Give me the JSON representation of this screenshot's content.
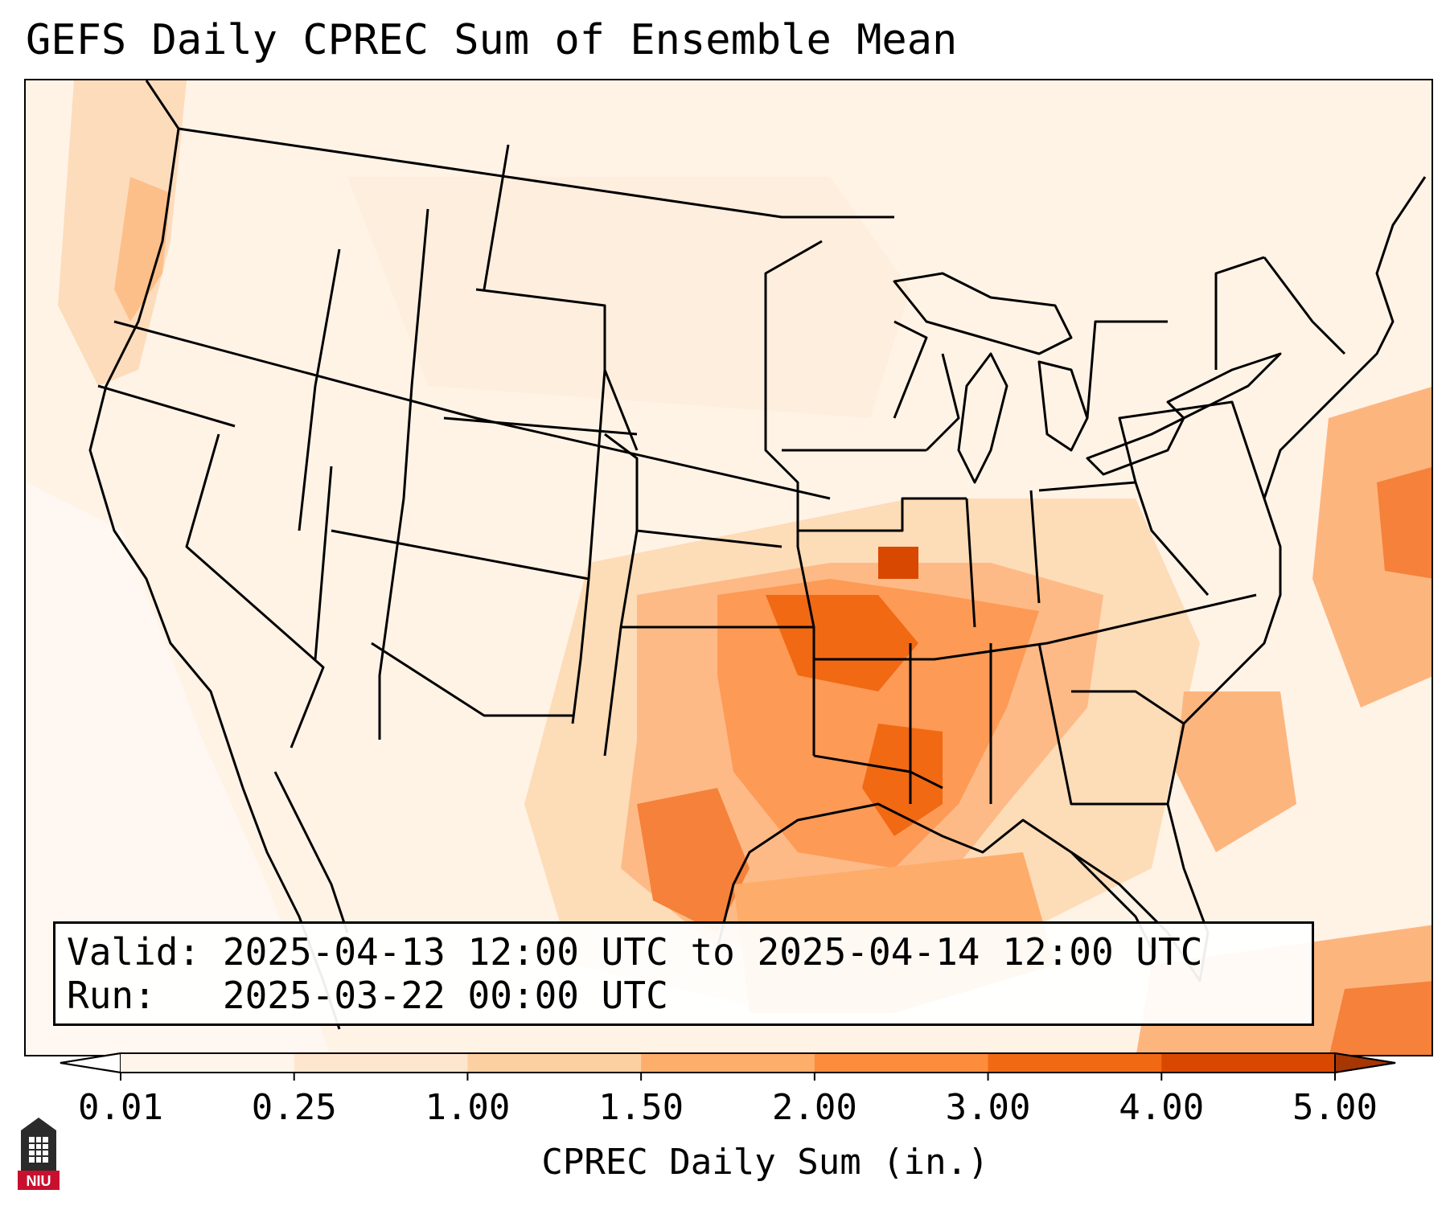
{
  "title": "GEFS Daily CPREC Sum of Ensemble Mean",
  "info": {
    "valid_label": "Valid:",
    "valid_value": "2025-04-13 12:00 UTC to 2025-04-14 12:00 UTC",
    "run_label": "Run:",
    "run_value": "2025-03-22 00:00 UTC"
  },
  "colorbar": {
    "label": "CPREC Daily Sum (in.)",
    "ticks": [
      "0.01",
      "0.25",
      "1.00",
      "1.50",
      "2.00",
      "3.00",
      "4.00",
      "5.00"
    ],
    "colors": [
      "#fff5eb",
      "#fee6ce",
      "#fdd0a2",
      "#fdae6b",
      "#fd8d3c",
      "#f16913",
      "#d94801",
      "#a63603"
    ],
    "under_color": "#ffffff",
    "over_color": "#a63603"
  },
  "logo": {
    "text": "NIU",
    "color": "#c8102e"
  },
  "map": {
    "region": "Contiguous United States",
    "max_area": "Mid-South / Lower Mississippi Valley",
    "land_color": "#fff0e0",
    "border_color": "#000000"
  }
}
